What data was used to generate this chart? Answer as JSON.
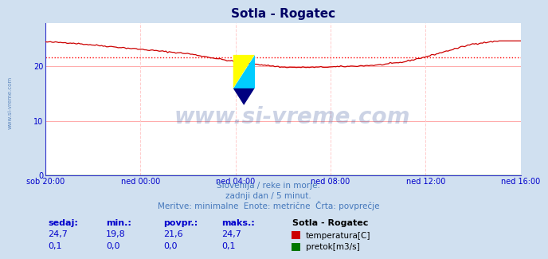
{
  "title": "Sotla - Rogatec",
  "bg_color": "#d0e0f0",
  "plot_bg_color": "#ffffff",
  "grid_color_h": "#ffaaaa",
  "grid_color_v": "#ffcccc",
  "xlabel_ticks": [
    "sob 20:00",
    "ned 00:00",
    "ned 04:00",
    "ned 08:00",
    "ned 12:00",
    "ned 16:00"
  ],
  "xtick_positions": [
    0,
    48,
    96,
    144,
    192,
    240
  ],
  "ylim": [
    0,
    28
  ],
  "yticks": [
    0,
    10,
    20
  ],
  "temp_color": "#cc0000",
  "flow_color": "#007700",
  "avg_color": "#ff0000",
  "avg_value": 21.6,
  "tick_color": "#0000cc",
  "subtitle_lines": [
    "Slovenija / reke in morje.",
    "zadnji dan / 5 minut.",
    "Meritve: minimalne  Enote: metrične  Črta: povprečje"
  ],
  "subtitle_color": "#4477bb",
  "table_headers": [
    "sedaj:",
    "min.:",
    "povpr.:",
    "maks.:"
  ],
  "table_values_temp": [
    "24,7",
    "19,8",
    "21,6",
    "24,7"
  ],
  "table_values_flow": [
    "0,1",
    "0,0",
    "0,0",
    "0,1"
  ],
  "table_label": "Sotla - Rogatec",
  "table_header_color": "#0000cc",
  "table_value_color": "#0000cc",
  "table_label_color": "#000000",
  "legend_temp": "temperatura[C]",
  "legend_flow": "pretok[m3/s]",
  "watermark_text": "www.si-vreme.com",
  "watermark_color": "#1a3a8a",
  "side_text": "www.si-vreme.com",
  "side_text_color": "#3366aa",
  "n_points": 289,
  "temp_min": 19.8,
  "temp_max": 24.7
}
